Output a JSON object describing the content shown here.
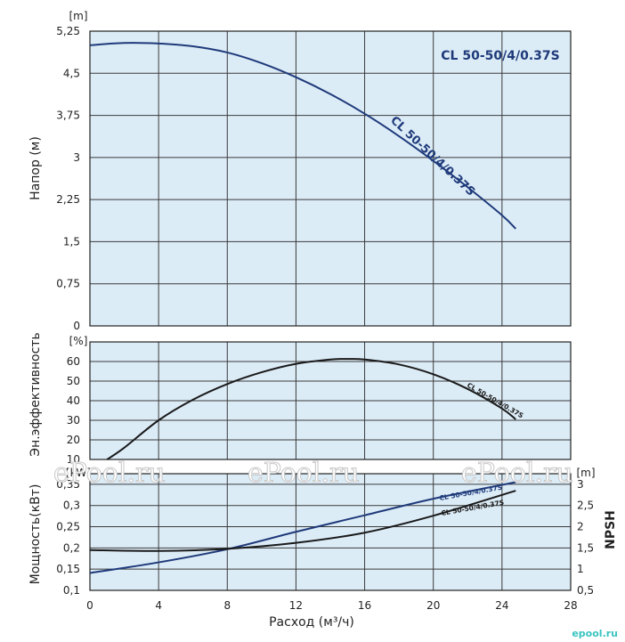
{
  "colors": {
    "panel_bg": "#dcecf7",
    "grid": "#3a3a3a",
    "head_curve": "#1f3a7a",
    "eff_curve": "#1a1a1a",
    "power_curve": "#1f3a7a",
    "npsh_curve": "#1a1a1a",
    "watermark": "#ffffff",
    "brand": "#39c4c0"
  },
  "chart_data": [
    {
      "type": "line",
      "panel": "head",
      "ylabel": "Напор (м)",
      "yunit": "[m]",
      "legend": "CL 50-50/4/0.37S",
      "xlim": [
        0,
        28
      ],
      "ylim": [
        0,
        5.25
      ],
      "xticks": [
        0,
        4,
        8,
        12,
        16,
        20,
        24,
        28
      ],
      "yticks": [
        0,
        0.75,
        1.5,
        2.25,
        3,
        3.75,
        4.5,
        5.25
      ],
      "ytick_labels": [
        "0",
        "0,75",
        "1,5",
        "2,25",
        "3",
        "3,75",
        "4,5",
        "5,25"
      ],
      "series": [
        {
          "name": "CL 50-50/4/0.37S",
          "x": [
            0,
            2,
            4,
            6,
            8,
            10,
            12,
            14,
            16,
            18,
            20,
            22,
            24,
            24.8
          ],
          "y": [
            5.0,
            5.04,
            5.03,
            4.98,
            4.87,
            4.68,
            4.43,
            4.13,
            3.78,
            3.38,
            2.94,
            2.47,
            1.97,
            1.73
          ]
        }
      ]
    },
    {
      "type": "line",
      "panel": "efficiency",
      "ylabel": "Эн.эффективность",
      "yunit": "[%]",
      "xlim": [
        0,
        28
      ],
      "ylim": [
        10,
        70
      ],
      "yticks": [
        10,
        20,
        30,
        40,
        50,
        60
      ],
      "ytick_labels": [
        "10",
        "20",
        "30",
        "40",
        "50",
        "60"
      ],
      "series": [
        {
          "name": "CL 50-50/4/0.37S",
          "x": [
            1,
            2,
            4,
            6,
            8,
            10,
            12,
            14,
            15,
            16,
            18,
            20,
            22,
            24,
            24.8
          ],
          "y": [
            10,
            16,
            30,
            40.5,
            48.5,
            54.5,
            58.8,
            61,
            61.3,
            61,
            58.5,
            53.5,
            46,
            36,
            30.5
          ]
        }
      ]
    },
    {
      "type": "line",
      "panel": "power_npsh",
      "ylabel": "Мощность(кВт)",
      "yunit": "[kW]",
      "y2label": "NPSH",
      "y2unit": "[m]",
      "xlabel": "Расход (м³/ч)",
      "xlim": [
        0,
        28
      ],
      "ylim": [
        0.1,
        0.375
      ],
      "yticks": [
        0.1,
        0.15,
        0.2,
        0.25,
        0.3,
        0.35
      ],
      "ytick_labels": [
        "0,1",
        "0,15",
        "0,2",
        "0,25",
        "0,3",
        "0,35"
      ],
      "y2lim": [
        0.5,
        3.25
      ],
      "y2ticks": [
        0.5,
        1,
        1.5,
        2,
        2.5,
        3
      ],
      "y2tick_labels": [
        "0,5",
        "1",
        "1,5",
        "2",
        "2,5",
        "3"
      ],
      "xtick_labels": [
        "0",
        "4",
        "8",
        "12",
        "16",
        "20",
        "24",
        "28"
      ],
      "series": [
        {
          "name": "CL 50-50/4/0.37S",
          "axis": "left",
          "x": [
            0,
            4,
            8,
            12,
            16,
            20,
            24.8
          ],
          "y": [
            0.141,
            0.166,
            0.197,
            0.238,
            0.277,
            0.316,
            0.355
          ]
        },
        {
          "name": "CL 50-50/4/0.37S",
          "axis": "right",
          "x": [
            0,
            4,
            8,
            12,
            16,
            20,
            24.8
          ],
          "y": [
            1.45,
            1.43,
            1.48,
            1.62,
            1.86,
            2.26,
            2.85
          ]
        }
      ]
    }
  ],
  "watermark": [
    "ePool.ru",
    "ePool.ru",
    "ePool.ru",
    "ePool.ru"
  ],
  "brand": "epool.ru"
}
